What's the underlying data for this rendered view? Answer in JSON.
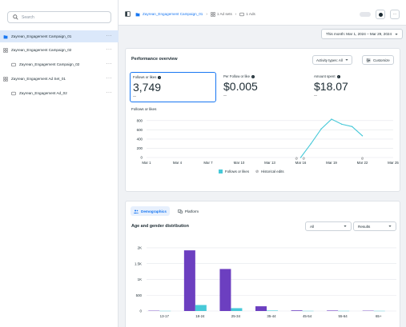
{
  "sidebar": {
    "search_placeholder": "Search",
    "items": [
      {
        "label": "Zayrean_Engagement Campaign_01",
        "more": "···"
      },
      {
        "label": "Zayrean_Engagement Campaign_02",
        "more": "···"
      },
      {
        "label": "Zayrean_Engagement Campaign_02",
        "more": "···"
      },
      {
        "label": "Zayrean_Engagement Ad Set_01",
        "more": "···"
      },
      {
        "label": "Zayrean_Engagement Ad_02",
        "more": "···"
      }
    ]
  },
  "topbar": {
    "campaign_link": "Zayrean_Engagement Campaign_01",
    "adsets": "1 Ad sets",
    "ads": "1 Ads",
    "more": "···"
  },
  "date_range": "This month: Mar 1, 2024 – Mar 29, 2024",
  "performance": {
    "title": "Performance overview",
    "activity_button": "Activity types: All",
    "customize_button": "Customize",
    "metrics": [
      {
        "label": "Follows or likes",
        "value": "3,749",
        "compare": "--"
      },
      {
        "label": "Per Follow or like",
        "value": "$0.005",
        "compare": "--"
      },
      {
        "label": "Amount spent",
        "value": "$18.07",
        "compare": "--"
      }
    ],
    "chart_title": "Follows or likes",
    "legend": {
      "series": "Follows or likes",
      "edits": "Historical edits"
    }
  },
  "demographics": {
    "tabs": [
      {
        "label": "Demographics"
      },
      {
        "label": "Platform"
      }
    ],
    "chart_title": "Age and gender distribution",
    "filter_all": "All",
    "filter_results": "Results"
  },
  "chart_data": [
    {
      "type": "line",
      "title": "Follows or likes",
      "x": [
        "Mar 1",
        "Mar 4",
        "Mar 7",
        "Mar 10",
        "Mar 13",
        "Mar 16",
        "Mar 19",
        "Mar 22",
        "Mar 25"
      ],
      "series": [
        {
          "name": "Follows or likes",
          "points": [
            {
              "x": "Mar 16",
              "y": 0
            },
            {
              "x": "Mar 17",
              "y": 300
            },
            {
              "x": "Mar 18",
              "y": 620
            },
            {
              "x": "Mar 19",
              "y": 830
            },
            {
              "x": "Mar 20",
              "y": 720
            },
            {
              "x": "Mar 21",
              "y": 670
            },
            {
              "x": "Mar 22",
              "y": 470
            }
          ]
        }
      ],
      "yticks": [
        0,
        200,
        400,
        600,
        800
      ],
      "ylim": [
        0,
        900
      ],
      "grid": true,
      "color": "#47c9d8"
    },
    {
      "type": "bar",
      "title": "Age and gender distribution",
      "categories": [
        "13-17",
        "18-24",
        "25-34",
        "35-44",
        "45-54",
        "55-64",
        "65+"
      ],
      "series": [
        {
          "name": "",
          "values": [
            10,
            1920,
            1330,
            150,
            20,
            15,
            10
          ],
          "color": "#6c3fc0"
        },
        {
          "name": "",
          "values": [
            5,
            190,
            90,
            15,
            5,
            5,
            5
          ],
          "color": "#47c9d8"
        }
      ],
      "ytick_labels": [
        "0",
        "500",
        "1K",
        "1.5K",
        "2K"
      ],
      "yticks": [
        0,
        500,
        1000,
        1500,
        2000
      ],
      "ylim": [
        0,
        2100
      ],
      "grid": true
    }
  ]
}
